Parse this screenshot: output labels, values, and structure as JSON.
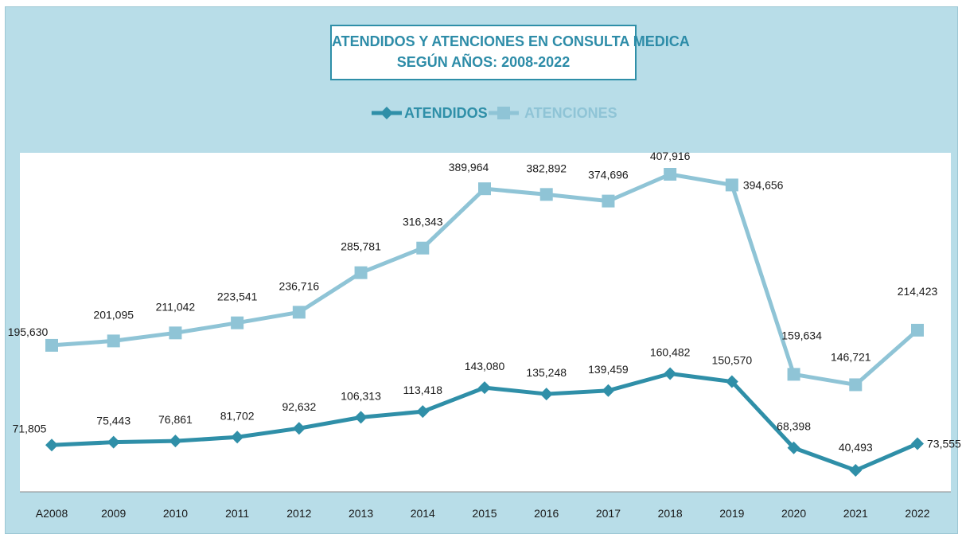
{
  "chart_data": {
    "type": "line",
    "title_line1": "ATENDIDOS Y ATENCIONES EN CONSULTA MEDICA",
    "title_line2": "SEGÚN AÑOS: 2008-2022",
    "categories": [
      "A2008",
      "2009",
      "2010",
      "2011",
      "2012",
      "2013",
      "2014",
      "2015",
      "2016",
      "2017",
      "2018",
      "2019",
      "2020",
      "2021",
      "2022"
    ],
    "series": [
      {
        "name": "ATENDIDOS",
        "color": "#2f8fa8",
        "marker": "diamond",
        "values": [
          71805,
          75443,
          76861,
          81702,
          92632,
          106313,
          113418,
          143080,
          135248,
          139459,
          160482,
          150570,
          68398,
          40493,
          73555
        ],
        "labels": [
          "71,805",
          "75,443",
          "76,861",
          "81,702",
          "92,632",
          "106,313",
          "113,418",
          "143,080",
          "135,248",
          "139,459",
          "160,482",
          "150,570",
          "68,398",
          "40,493",
          "73,555"
        ]
      },
      {
        "name": "ATENCIONES",
        "color": "#8fc4d6",
        "marker": "square",
        "values": [
          195630,
          201095,
          211042,
          223541,
          236716,
          285781,
          316343,
          389964,
          382892,
          374696,
          407916,
          394656,
          159634,
          146721,
          214423
        ],
        "labels": [
          "195,630",
          "201,095",
          "211,042",
          "223,541",
          "236,716",
          "285,781",
          "316,343",
          "389,964",
          "382,892",
          "374,696",
          "407,916",
          "394,656",
          "159,634",
          "146,721",
          "214,423"
        ]
      }
    ],
    "legend_position": "top-center",
    "grid": false,
    "colors": {
      "background": "#b8dde8",
      "plot_area": "#ffffff",
      "title_text": "#2d8ca8",
      "axis_line": "#888888"
    }
  }
}
